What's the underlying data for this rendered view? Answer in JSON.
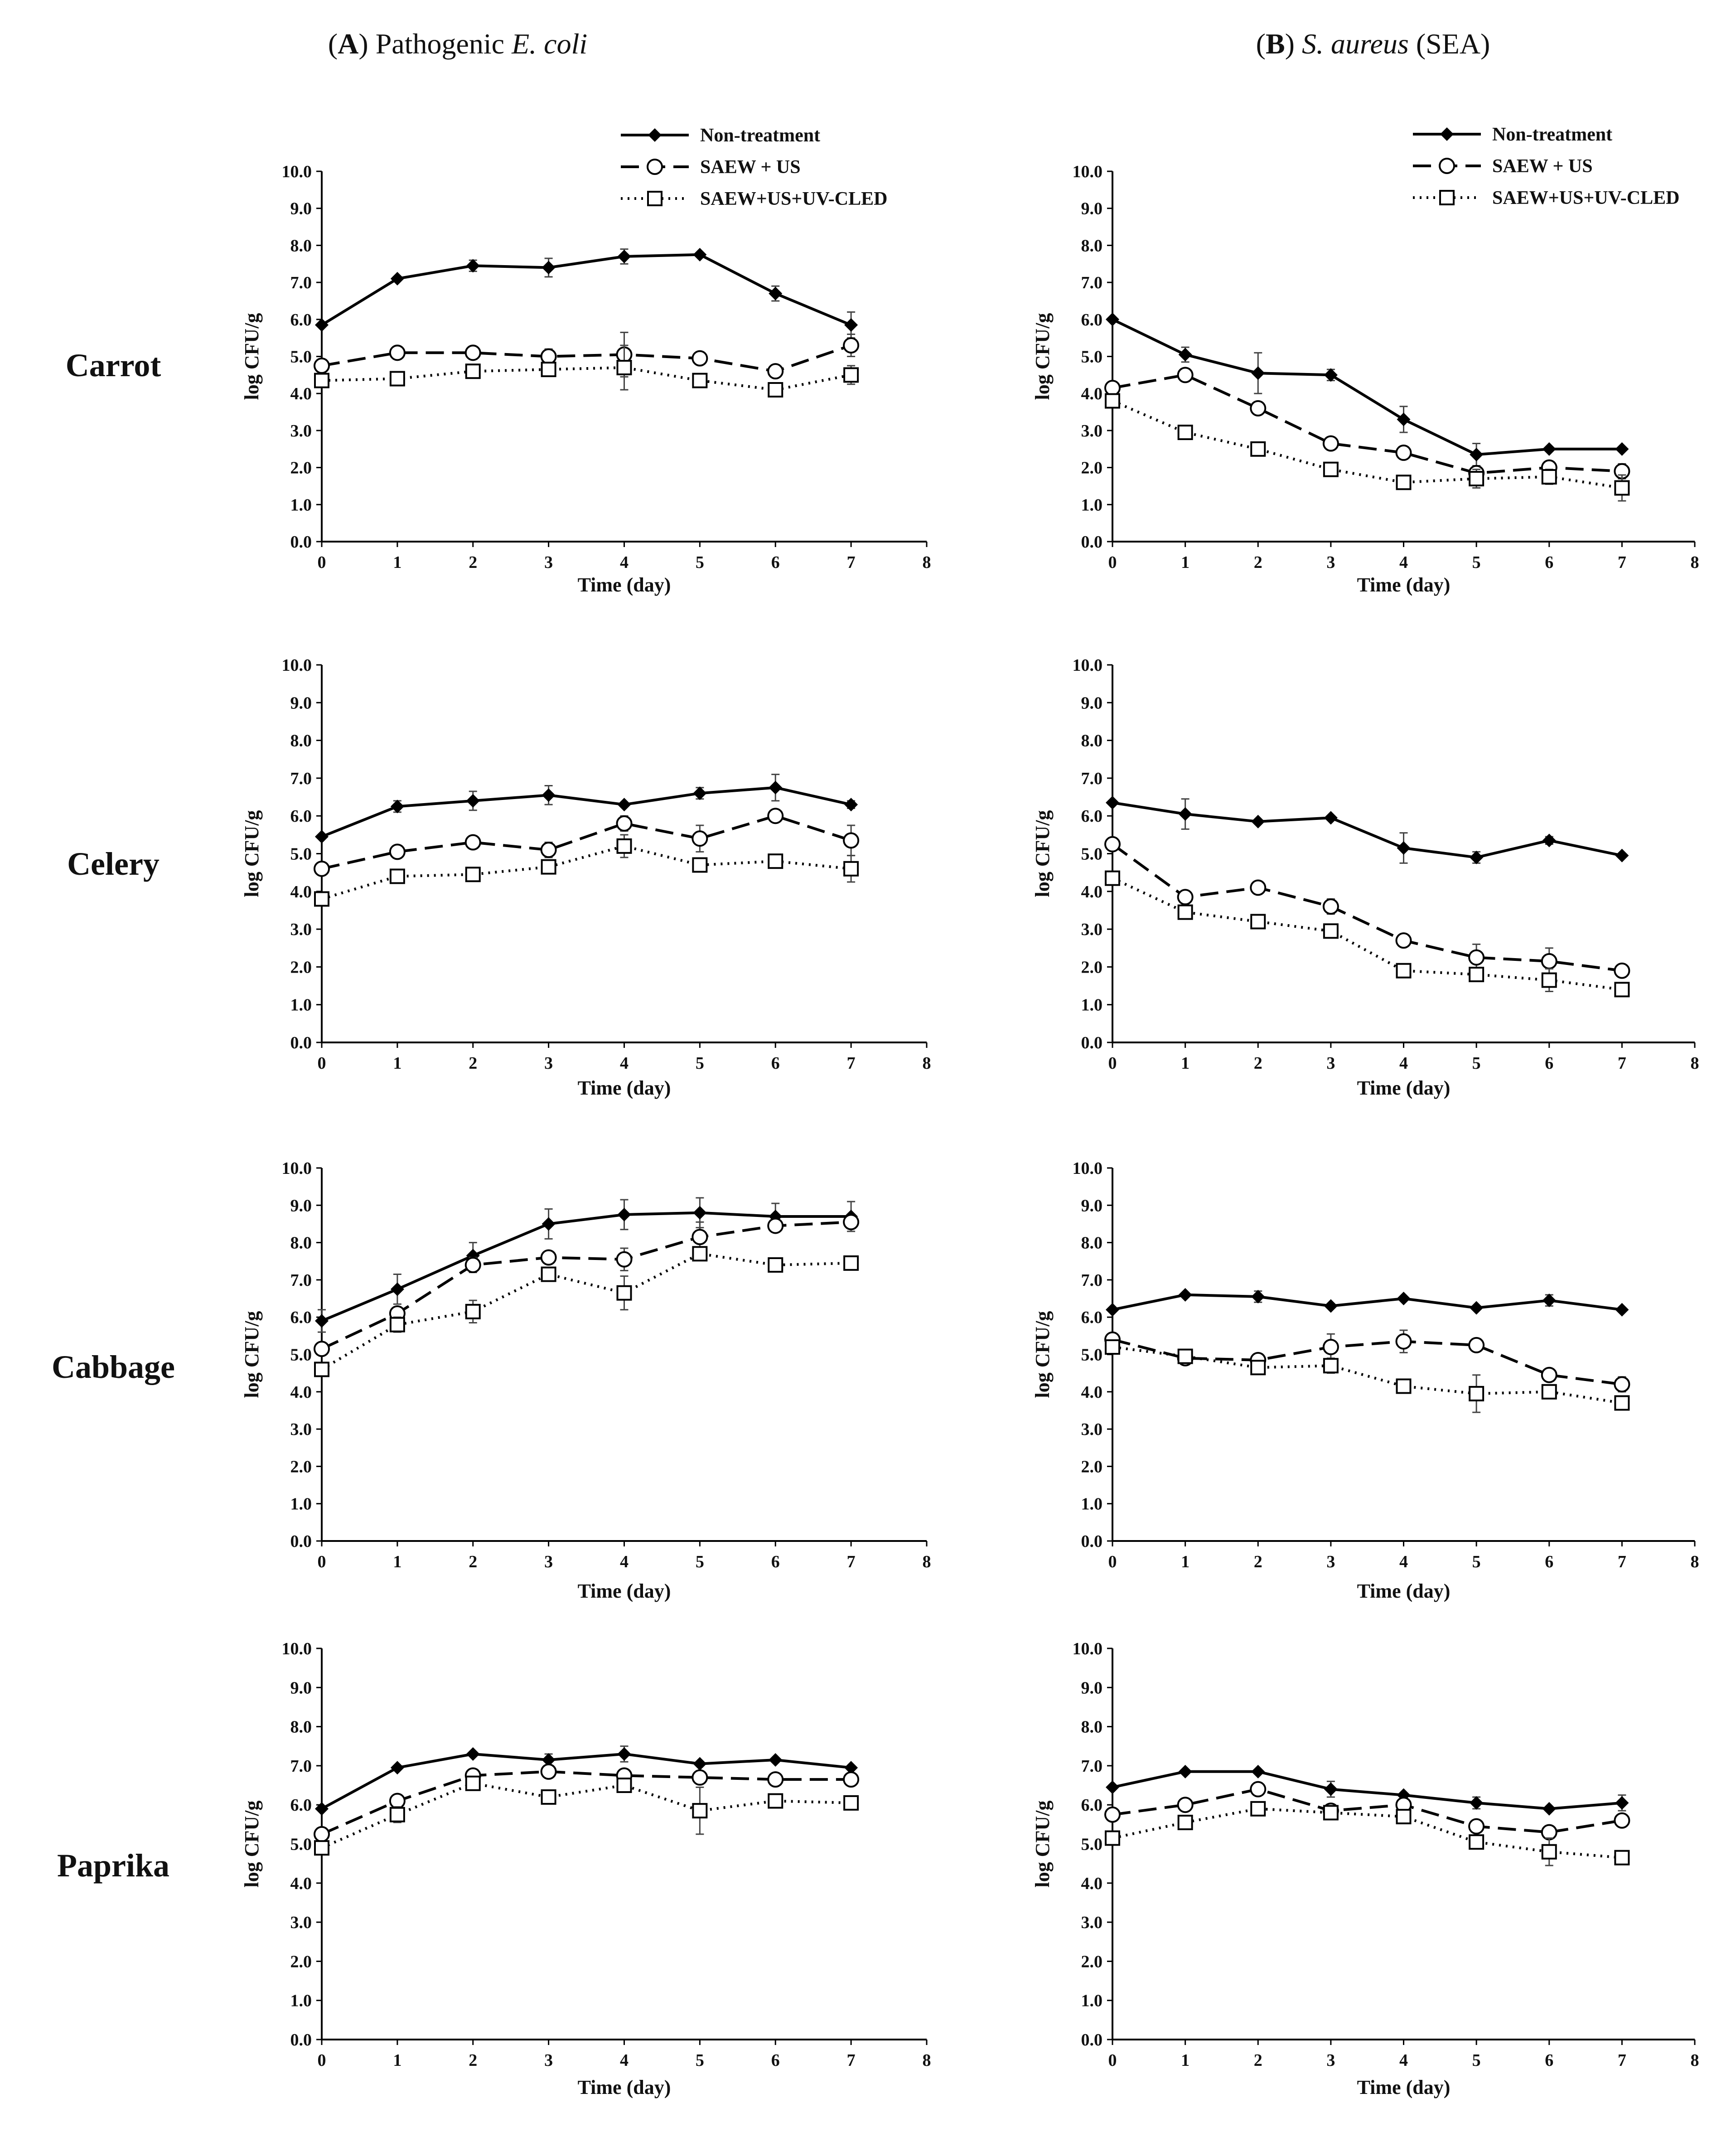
{
  "figure": {
    "columns": [
      {
        "label": "A",
        "text": "Pathogenic",
        "organism": "E. coli"
      },
      {
        "label": "B",
        "organism": "S. aureus",
        "text": "(SEA)"
      }
    ],
    "rows": [
      "Carrot",
      "Celery",
      "Cabbage",
      "Paprika"
    ],
    "legend": [
      "Non-treatment",
      "SAEW + US",
      "SAEW+US+UV-CLED"
    ]
  },
  "chart_data": [
    {
      "type": "line",
      "column": "A",
      "row": "Carrot",
      "x": [
        0,
        1,
        2,
        3,
        4,
        5,
        6,
        7
      ],
      "xlim": [
        0,
        8
      ],
      "ylim": [
        0,
        10
      ],
      "xlabel": "Time (day)",
      "ylabel": "log CFU/g",
      "series": [
        {
          "name": "Non-treatment",
          "values": [
            5.85,
            7.1,
            7.45,
            7.4,
            7.7,
            7.75,
            6.7,
            5.85
          ],
          "err": [
            0,
            0,
            0.15,
            0.25,
            0.2,
            0,
            0.2,
            0.35
          ]
        },
        {
          "name": "SAEW + US",
          "values": [
            4.75,
            5.1,
            5.1,
            5.0,
            5.05,
            4.95,
            4.6,
            5.3
          ],
          "err": [
            0,
            0,
            0,
            0.2,
            0.6,
            0,
            0,
            0.3
          ]
        },
        {
          "name": "SAEW+US+UV-CLED",
          "values": [
            4.35,
            4.4,
            4.6,
            4.65,
            4.7,
            4.35,
            4.1,
            4.5
          ],
          "err": [
            0,
            0,
            0,
            0.15,
            0.6,
            0,
            0.1,
            0.25
          ]
        }
      ]
    },
    {
      "type": "line",
      "column": "B",
      "row": "Carrot",
      "x": [
        0,
        1,
        2,
        3,
        4,
        5,
        6,
        7
      ],
      "xlim": [
        0,
        8
      ],
      "ylim": [
        0,
        10
      ],
      "xlabel": "Time (day)",
      "ylabel": "log CFU/g",
      "series": [
        {
          "name": "Non-treatment",
          "values": [
            6.0,
            5.05,
            4.55,
            4.5,
            3.3,
            2.35,
            2.5,
            2.5
          ],
          "err": [
            0,
            0.2,
            0.55,
            0.15,
            0.35,
            0.3,
            0,
            0
          ]
        },
        {
          "name": "SAEW + US",
          "values": [
            4.15,
            4.5,
            3.6,
            2.65,
            2.4,
            1.85,
            2.0,
            1.9
          ],
          "err": [
            0,
            0,
            0,
            0,
            0,
            0,
            0,
            0.2
          ]
        },
        {
          "name": "SAEW+US+UV-CLED",
          "values": [
            3.8,
            2.95,
            2.5,
            1.95,
            1.6,
            1.7,
            1.75,
            1.45
          ],
          "err": [
            0,
            0,
            0,
            0,
            0,
            0.25,
            0.2,
            0.35
          ]
        }
      ]
    },
    {
      "type": "line",
      "column": "A",
      "row": "Celery",
      "x": [
        0,
        1,
        2,
        3,
        4,
        5,
        6,
        7
      ],
      "xlim": [
        0,
        8
      ],
      "ylim": [
        0,
        10
      ],
      "xlabel": "Time (day)",
      "ylabel": "log CFU/g",
      "series": [
        {
          "name": "Non-treatment",
          "values": [
            5.45,
            6.25,
            6.4,
            6.55,
            6.3,
            6.6,
            6.75,
            6.3
          ],
          "err": [
            0,
            0.15,
            0.25,
            0.25,
            0,
            0.15,
            0.35,
            0.1
          ]
        },
        {
          "name": "SAEW + US",
          "values": [
            4.6,
            5.05,
            5.3,
            5.1,
            5.8,
            5.4,
            6.0,
            5.35
          ],
          "err": [
            0,
            0,
            0,
            0.2,
            0.2,
            0.35,
            0,
            0.4
          ]
        },
        {
          "name": "SAEW+US+UV-CLED",
          "values": [
            3.8,
            4.4,
            4.45,
            4.65,
            5.2,
            4.7,
            4.8,
            4.6
          ],
          "err": [
            0,
            0,
            0,
            0.15,
            0.3,
            0,
            0,
            0.35
          ]
        }
      ]
    },
    {
      "type": "line",
      "column": "B",
      "row": "Celery",
      "x": [
        0,
        1,
        2,
        3,
        4,
        5,
        6,
        7
      ],
      "xlim": [
        0,
        8
      ],
      "ylim": [
        0,
        10
      ],
      "xlabel": "Time (day)",
      "ylabel": "log CFU/g",
      "series": [
        {
          "name": "Non-treatment",
          "values": [
            6.35,
            6.05,
            5.85,
            5.95,
            5.15,
            4.9,
            5.35,
            4.95
          ],
          "err": [
            0,
            0.4,
            0,
            0,
            0.4,
            0.15,
            0.1,
            0
          ]
        },
        {
          "name": "SAEW + US",
          "values": [
            5.25,
            3.85,
            4.1,
            3.6,
            2.7,
            2.25,
            2.15,
            1.9
          ],
          "err": [
            0,
            0,
            0,
            0.2,
            0.15,
            0.35,
            0.35,
            0
          ]
        },
        {
          "name": "SAEW+US+UV-CLED",
          "values": [
            4.35,
            3.45,
            3.2,
            2.95,
            1.9,
            1.8,
            1.65,
            1.4
          ],
          "err": [
            0,
            0,
            0.15,
            0,
            0,
            0,
            0.3,
            0
          ]
        }
      ]
    },
    {
      "type": "line",
      "column": "A",
      "row": "Cabbage",
      "x": [
        0,
        1,
        2,
        3,
        4,
        5,
        6,
        7
      ],
      "xlim": [
        0,
        8
      ],
      "ylim": [
        0,
        10
      ],
      "xlabel": "Time (day)",
      "ylabel": "log CFU/g",
      "series": [
        {
          "name": "Non-treatment",
          "values": [
            5.9,
            6.75,
            7.65,
            8.5,
            8.75,
            8.8,
            8.7,
            8.7
          ],
          "err": [
            0.3,
            0.4,
            0.35,
            0.4,
            0.4,
            0.4,
            0.35,
            0.4
          ]
        },
        {
          "name": "SAEW + US",
          "values": [
            5.15,
            6.1,
            7.4,
            7.6,
            7.55,
            8.15,
            8.45,
            8.55
          ],
          "err": [
            0,
            0,
            0.2,
            0,
            0.3,
            0.4,
            0.15,
            0
          ]
        },
        {
          "name": "SAEW+US+UV-CLED",
          "values": [
            4.6,
            5.8,
            6.15,
            7.15,
            6.65,
            7.7,
            7.4,
            7.45
          ],
          "err": [
            0,
            0.2,
            0.3,
            0.15,
            0.45,
            0.15,
            0.15,
            0.15
          ]
        }
      ]
    },
    {
      "type": "line",
      "column": "B",
      "row": "Cabbage",
      "x": [
        0,
        1,
        2,
        3,
        4,
        5,
        6,
        7
      ],
      "xlim": [
        0,
        8
      ],
      "ylim": [
        0,
        10
      ],
      "xlabel": "Time (day)",
      "ylabel": "log CFU/g",
      "series": [
        {
          "name": "Non-treatment",
          "values": [
            6.2,
            6.6,
            6.55,
            6.3,
            6.5,
            6.25,
            6.45,
            6.2
          ],
          "err": [
            0,
            0,
            0.15,
            0,
            0,
            0,
            0.15,
            0
          ]
        },
        {
          "name": "SAEW + US",
          "values": [
            5.4,
            4.9,
            4.85,
            5.2,
            5.35,
            5.25,
            4.45,
            4.2
          ],
          "err": [
            0,
            0,
            0,
            0.35,
            0.3,
            0,
            0,
            0.2
          ]
        },
        {
          "name": "SAEW+US+UV-CLED",
          "values": [
            5.2,
            4.95,
            4.65,
            4.7,
            4.15,
            3.95,
            4.0,
            3.7
          ],
          "err": [
            0,
            0,
            0,
            0.2,
            0,
            0.5,
            0.15,
            0.1
          ]
        }
      ]
    },
    {
      "type": "line",
      "column": "A",
      "row": "Paprika",
      "x": [
        0,
        1,
        2,
        3,
        4,
        5,
        6,
        7
      ],
      "xlim": [
        0,
        8
      ],
      "ylim": [
        0,
        10
      ],
      "xlabel": "Time (day)",
      "ylabel": "log CFU/g",
      "series": [
        {
          "name": "Non-treatment",
          "values": [
            5.9,
            6.95,
            7.3,
            7.15,
            7.3,
            7.05,
            7.15,
            6.95
          ],
          "err": [
            0,
            0,
            0,
            0.15,
            0.2,
            0,
            0,
            0
          ]
        },
        {
          "name": "SAEW + US",
          "values": [
            5.25,
            6.1,
            6.75,
            6.85,
            6.75,
            6.7,
            6.65,
            6.65
          ],
          "err": [
            0,
            0,
            0.15,
            0,
            0,
            0,
            0,
            0
          ]
        },
        {
          "name": "SAEW+US+UV-CLED",
          "values": [
            4.9,
            5.75,
            6.55,
            6.2,
            6.5,
            5.85,
            6.1,
            6.05
          ],
          "err": [
            0,
            0.2,
            0.1,
            0,
            0.15,
            0.6,
            0,
            0
          ]
        }
      ]
    },
    {
      "type": "line",
      "column": "B",
      "row": "Paprika",
      "x": [
        0,
        1,
        2,
        3,
        4,
        5,
        6,
        7
      ],
      "xlim": [
        0,
        8
      ],
      "ylim": [
        0,
        10
      ],
      "xlabel": "Time (day)",
      "ylabel": "log CFU/g",
      "series": [
        {
          "name": "Non-treatment",
          "values": [
            6.45,
            6.85,
            6.85,
            6.4,
            6.25,
            6.05,
            5.9,
            6.05
          ],
          "err": [
            0,
            0,
            0,
            0.2,
            0,
            0.15,
            0,
            0.2
          ]
        },
        {
          "name": "SAEW + US",
          "values": [
            5.75,
            6.0,
            6.4,
            5.85,
            6.0,
            5.45,
            5.3,
            5.6
          ],
          "err": [
            0,
            0,
            0,
            0.15,
            0,
            0,
            0,
            0.15
          ]
        },
        {
          "name": "SAEW+US+UV-CLED",
          "values": [
            5.15,
            5.55,
            5.9,
            5.8,
            5.7,
            5.05,
            4.8,
            4.65
          ],
          "err": [
            0,
            0,
            0,
            0,
            0.15,
            0,
            0.35,
            0
          ]
        }
      ]
    }
  ]
}
